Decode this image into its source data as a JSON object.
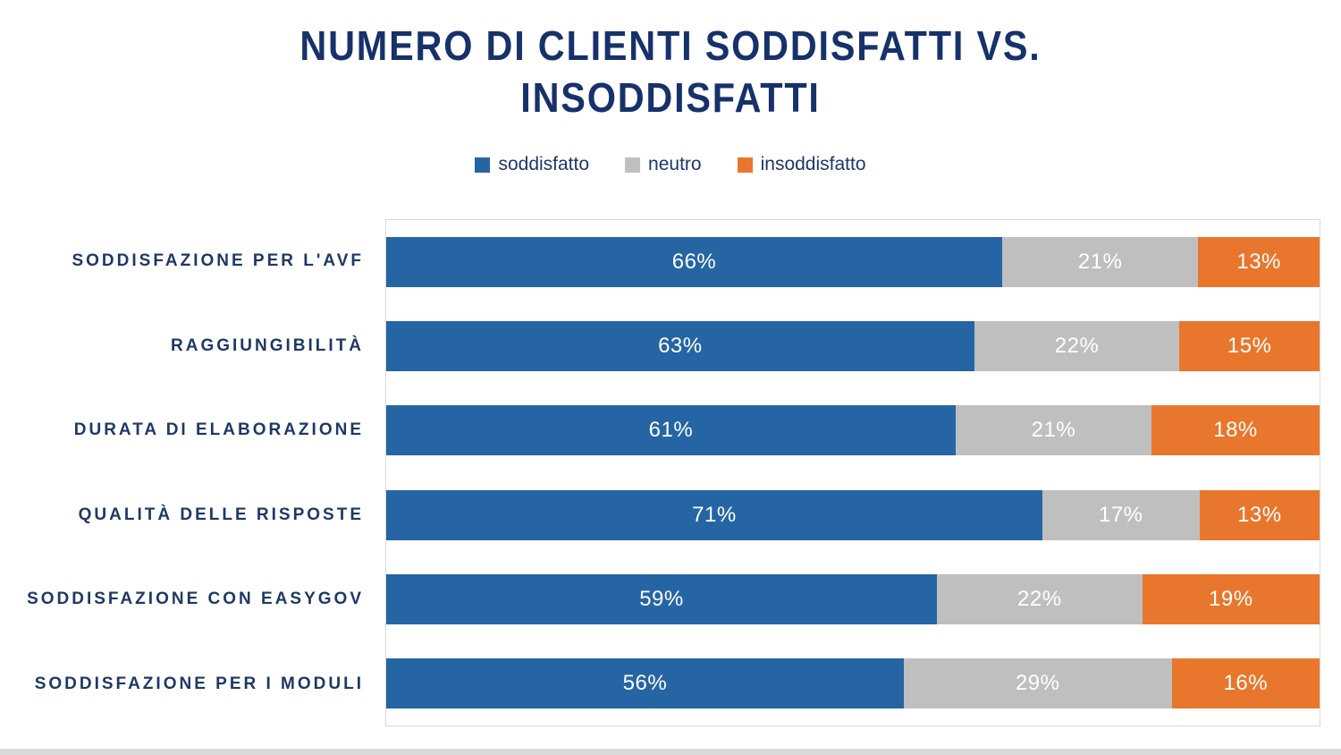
{
  "title": {
    "line1": "NUMERO DI CLIENTI SODDISFATTI VS.",
    "line2": "INSODDISFATTI"
  },
  "chart_data": {
    "type": "bar",
    "orientation": "horizontal",
    "stacked": true,
    "percent_stacked": true,
    "title": "NUMERO DI CLIENTI SODDISFATTI VS. INSODDISFATTI",
    "legend_position": "top",
    "grid": false,
    "xlim": [
      0,
      100
    ],
    "value_suffix": "%",
    "categories": [
      "SODDISFAZIONE PER L'AVF",
      "RAGGIUNGIBILITÀ",
      "DURATA DI ELABORAZIONE",
      "QUALITÀ DELLE RISPOSTE",
      "SODDISFAZIONE CON EASYGOV",
      "SODDISFAZIONE PER I MODULI"
    ],
    "series": [
      {
        "name": "soddisfatto",
        "color": "#2565a3",
        "values": [
          66,
          63,
          61,
          71,
          59,
          56
        ]
      },
      {
        "name": "neutro",
        "color": "#bfbfbf",
        "values": [
          21,
          22,
          21,
          17,
          22,
          29
        ]
      },
      {
        "name": "insoddisfatto",
        "color": "#e8772d",
        "values": [
          13,
          15,
          18,
          13,
          19,
          16
        ]
      }
    ],
    "data_labels": [
      [
        "66%",
        "21%",
        "13%"
      ],
      [
        "63%",
        "22%",
        "15%"
      ],
      [
        "61%",
        "21%",
        "18%"
      ],
      [
        "71%",
        "17%",
        "13%"
      ],
      [
        "59%",
        "22%",
        "19%"
      ],
      [
        "56%",
        "29%",
        "16%"
      ]
    ]
  },
  "colors": {
    "title_text": "#17316a",
    "category_text": "#1f3864",
    "legend_text": "#1f3864",
    "bar_label_text": "#ffffff",
    "plot_border": "#d9d9d9",
    "bottom_strip": "#d9d9d9",
    "background": "#ffffff"
  }
}
